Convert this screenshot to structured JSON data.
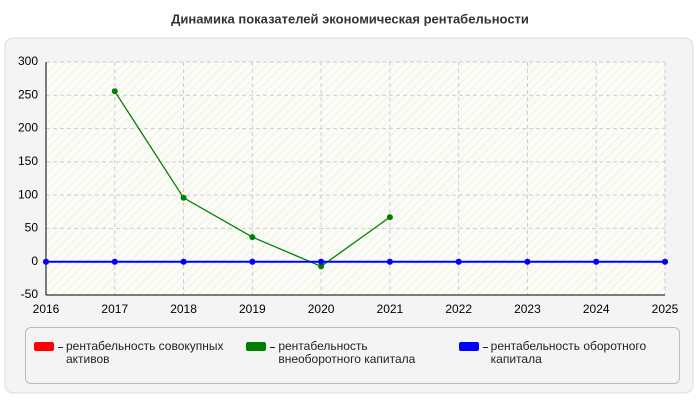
{
  "chart_data": {
    "type": "line",
    "title": "Динамика показателей экономическая рентабельности",
    "x": [
      2016,
      2017,
      2018,
      2019,
      2020,
      2021,
      2022,
      2023,
      2024,
      2025
    ],
    "series": [
      {
        "name": "рентабельность совокупных активов",
        "color": "#ff0000",
        "values": [
          0,
          0,
          0,
          0,
          0,
          0,
          0,
          0,
          0,
          0
        ]
      },
      {
        "name": "рентабельность внеоборотного капитала",
        "color": "#008000",
        "values": [
          null,
          256,
          96,
          37,
          -7,
          67,
          null,
          null,
          null,
          null
        ]
      },
      {
        "name": "рентабельность оборотного капитала",
        "color": "#0000ff",
        "values": [
          0,
          0,
          0,
          0,
          0,
          0,
          0,
          0,
          0,
          0
        ]
      }
    ],
    "xlim": [
      2016,
      2025
    ],
    "xticks": [
      2016,
      2017,
      2018,
      2019,
      2020,
      2021,
      2022,
      2023,
      2024,
      2025
    ],
    "ylim": [
      -50,
      300
    ],
    "yticks": [
      -50,
      0,
      50,
      100,
      150,
      200,
      250,
      300
    ],
    "grid": true,
    "legend": "bottom"
  }
}
